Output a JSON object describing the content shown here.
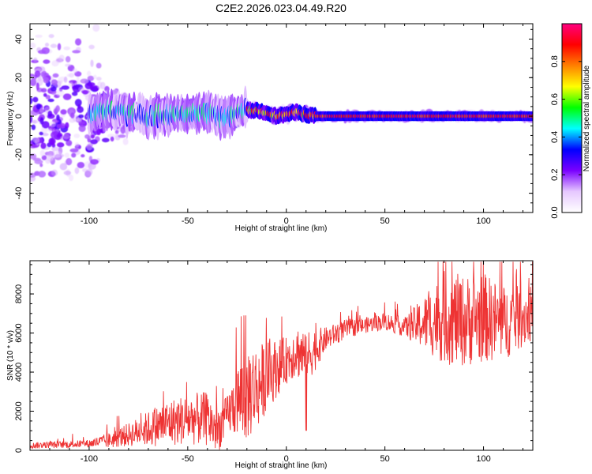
{
  "title": "C2E2.2026.023.04.49.R20",
  "chart_data": [
    {
      "type": "heatmap",
      "xlabel": "Height of straight line (km)",
      "ylabel": "Frequency (Hz)",
      "xlim": [
        -130,
        125
      ],
      "ylim": [
        -50,
        48
      ],
      "xticks": [
        -100,
        -50,
        0,
        50,
        100
      ],
      "yticks": [
        -40,
        -20,
        0,
        20,
        40
      ],
      "xtick_labels": [
        "-100",
        "-50",
        "0",
        "50",
        "100"
      ],
      "ytick_labels": [
        "-40",
        "-20",
        "0",
        "20",
        "40"
      ],
      "colorbar": {
        "label": "Normalized spectral amplitude",
        "range": [
          0,
          1
        ],
        "ticks": [
          0.0,
          0.2,
          0.4,
          0.6,
          0.8
        ],
        "tick_labels": [
          "0.0",
          "0.2",
          "0.4",
          "0.6",
          "0.8"
        ],
        "colors": [
          "#ffffff",
          "#e6c8ff",
          "#7a00ff",
          "#0000ff",
          "#00ffff",
          "#00ff00",
          "#ffff00",
          "#ff8000",
          "#ff0000",
          "#ff0080"
        ]
      },
      "ridge": {
        "x": [
          -100,
          -90,
          -80,
          -70,
          -60,
          -50,
          -40,
          -30,
          -20,
          -15,
          -10,
          -5,
          0,
          5,
          10,
          15,
          20,
          40,
          60,
          80,
          100,
          125
        ],
        "y": [
          2,
          3,
          1,
          0,
          1,
          2,
          1,
          0,
          3,
          3,
          2,
          0,
          1,
          2,
          1,
          0,
          0,
          0,
          0,
          0,
          0,
          0
        ]
      }
    },
    {
      "type": "line",
      "xlabel": "Height of straight line (km)",
      "ylabel": "SNR (10 * v/v)",
      "xlim": [
        -130,
        125
      ],
      "ylim": [
        0,
        9700
      ],
      "xticks": [
        -100,
        -50,
        0,
        50,
        100
      ],
      "yticks": [
        0,
        2000,
        4000,
        6000,
        8000
      ],
      "xtick_labels": [
        "-100",
        "-50",
        "0",
        "50",
        "100"
      ],
      "ytick_labels": [
        "0",
        "2000",
        "4000",
        "6000",
        "8000"
      ],
      "line_color": "#ee3333",
      "envelope": {
        "x": [
          -130,
          -110,
          -100,
          -90,
          -80,
          -70,
          -60,
          -50,
          -40,
          -35,
          -30,
          -25,
          -20,
          -15,
          -10,
          -5,
          0,
          5,
          10,
          15,
          20,
          30,
          40,
          50,
          60,
          70,
          80,
          90,
          100,
          110,
          125
        ],
        "y": [
          250,
          300,
          350,
          500,
          800,
          1100,
          1400,
          1600,
          1600,
          1000,
          1800,
          2500,
          3000,
          3200,
          3800,
          4200,
          4600,
          5100,
          4800,
          5200,
          5700,
          6200,
          6400,
          6600,
          6300,
          6500,
          6800,
          6600,
          6800,
          6500,
          7000
        ]
      },
      "spread": {
        "x": [
          -130,
          -100,
          -80,
          -60,
          -40,
          -30,
          -20,
          -10,
          0,
          10,
          20,
          40,
          60,
          70,
          80,
          100,
          125
        ],
        "y": [
          150,
          200,
          600,
          1200,
          1400,
          1000,
          2600,
          1800,
          1200,
          1500,
          600,
          400,
          500,
          1400,
          2400,
          2300,
          1400
        ]
      }
    }
  ]
}
